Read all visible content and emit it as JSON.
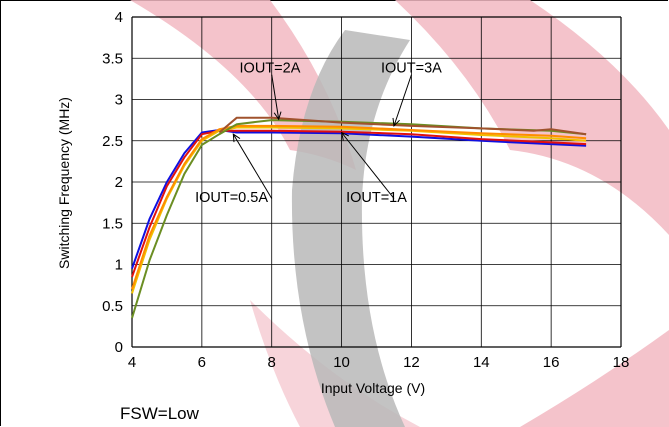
{
  "chart_data": {
    "type": "line",
    "title": "",
    "xlabel": "Input Voltage (V)",
    "ylabel": "Switching Frequency (MHz)",
    "xlim": [
      4,
      18
    ],
    "ylim": [
      0,
      4
    ],
    "xticks": [
      4,
      6,
      8,
      10,
      12,
      14,
      16,
      18
    ],
    "yticks": [
      0,
      0.5,
      1,
      1.5,
      2,
      2.5,
      3,
      3.5,
      4
    ],
    "ytick_labels": [
      "0",
      "0.5",
      "1",
      "1.5",
      "2",
      "2.5",
      "3",
      "3.5",
      "4"
    ],
    "grid": true,
    "legend": "none",
    "series": [
      {
        "name": "IOUT=0.5A",
        "color": "#1010e0",
        "points": [
          [
            4,
            0.95
          ],
          [
            4.5,
            1.55
          ],
          [
            5,
            2.0
          ],
          [
            5.5,
            2.35
          ],
          [
            6,
            2.6
          ],
          [
            6.5,
            2.63
          ],
          [
            7,
            2.6
          ],
          [
            8,
            2.6
          ],
          [
            10,
            2.59
          ],
          [
            12,
            2.55
          ],
          [
            14,
            2.5
          ],
          [
            16,
            2.46
          ],
          [
            17,
            2.44
          ]
        ]
      },
      {
        "name": "IOUT=1A",
        "color": "#e01010",
        "points": [
          [
            4,
            0.85
          ],
          [
            4.5,
            1.45
          ],
          [
            5,
            1.95
          ],
          [
            5.5,
            2.3
          ],
          [
            6,
            2.58
          ],
          [
            6.5,
            2.62
          ],
          [
            7,
            2.62
          ],
          [
            8,
            2.62
          ],
          [
            10,
            2.61
          ],
          [
            12,
            2.58
          ],
          [
            14,
            2.52
          ],
          [
            16,
            2.48
          ],
          [
            17,
            2.46
          ]
        ]
      },
      {
        "name": "IOUT=2A",
        "color": "#f0c000",
        "points": [
          [
            4,
            0.65
          ],
          [
            4.5,
            1.3
          ],
          [
            5,
            1.8
          ],
          [
            5.5,
            2.2
          ],
          [
            6,
            2.5
          ],
          [
            6.5,
            2.62
          ],
          [
            7,
            2.66
          ],
          [
            8,
            2.66
          ],
          [
            10,
            2.65
          ],
          [
            12,
            2.62
          ],
          [
            14,
            2.57
          ],
          [
            16,
            2.53
          ],
          [
            17,
            2.5
          ]
        ]
      },
      {
        "name": "IOUT=3A",
        "color": "#ff8c00",
        "points": [
          [
            4,
            0.7
          ],
          [
            4.5,
            1.35
          ],
          [
            5,
            1.82
          ],
          [
            5.5,
            2.22
          ],
          [
            6,
            2.52
          ],
          [
            6.5,
            2.64
          ],
          [
            7,
            2.68
          ],
          [
            8,
            2.68
          ],
          [
            10,
            2.67
          ],
          [
            12,
            2.63
          ],
          [
            14,
            2.59
          ],
          [
            16,
            2.56
          ],
          [
            17,
            2.53
          ]
        ]
      },
      {
        "name": "",
        "color": "#6b8e23",
        "points": [
          [
            4,
            0.35
          ],
          [
            4.5,
            1.05
          ],
          [
            5,
            1.6
          ],
          [
            5.5,
            2.1
          ],
          [
            6,
            2.45
          ],
          [
            6.5,
            2.58
          ],
          [
            7,
            2.7
          ],
          [
            8,
            2.75
          ],
          [
            10,
            2.73
          ],
          [
            12,
            2.7
          ],
          [
            14,
            2.65
          ],
          [
            16,
            2.62
          ],
          [
            17,
            2.58
          ]
        ]
      },
      {
        "name": "",
        "color": "#a0522d",
        "points": [
          [
            6.5,
            2.6
          ],
          [
            7,
            2.78
          ],
          [
            8,
            2.78
          ],
          [
            10,
            2.72
          ],
          [
            12,
            2.68
          ],
          [
            14,
            2.65
          ],
          [
            15.5,
            2.62
          ],
          [
            16,
            2.64
          ],
          [
            17,
            2.58
          ]
        ]
      }
    ],
    "annotations": [
      {
        "text": "IOUT=2A",
        "x": 8.0,
        "y": 3.3,
        "arrow_to": [
          8.2,
          2.76
        ],
        "text_pos": [
          7.95,
          3.33
        ]
      },
      {
        "text": "IOUT=3A",
        "x": 12.0,
        "y": 3.3,
        "arrow_to": [
          11.5,
          2.68
        ],
        "text_pos": [
          12.0,
          3.33
        ]
      },
      {
        "text": "IOUT=0.5A",
        "x": 8.0,
        "y": 1.8,
        "arrow_to": [
          6.9,
          2.58
        ],
        "text_pos": [
          6.85,
          1.76
        ]
      },
      {
        "text": "IOUT=1A",
        "x": 11.5,
        "y": 1.8,
        "arrow_to": [
          10.0,
          2.6
        ],
        "text_pos": [
          11.0,
          1.76
        ]
      }
    ]
  },
  "caption": "FSW=Low",
  "colors": {
    "background": "#ffffff",
    "grid": "#000000",
    "watermark_red": "#f2b8c2",
    "watermark_gray": "#b9b9b9"
  }
}
